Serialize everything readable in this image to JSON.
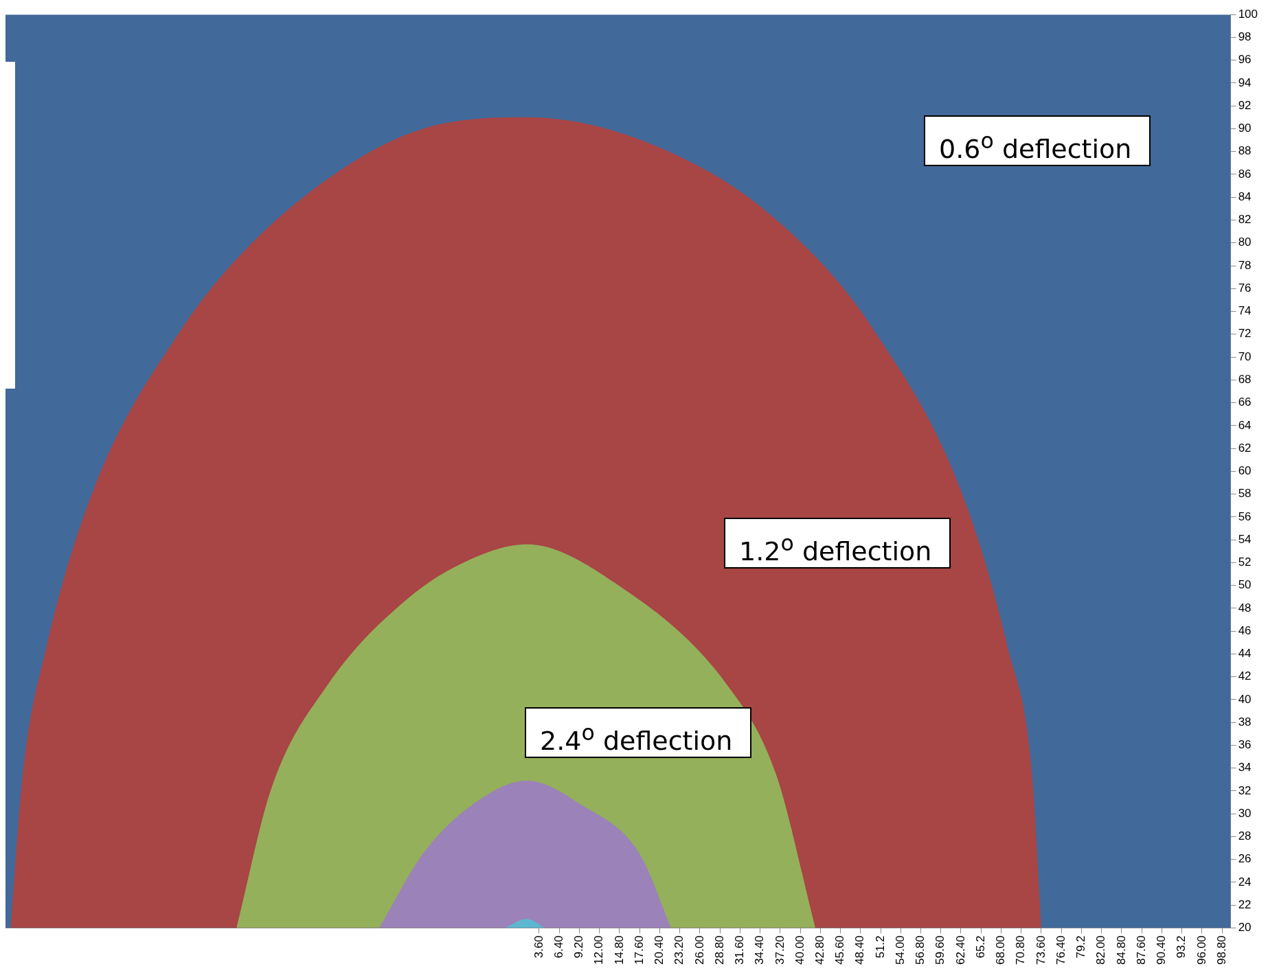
{
  "chart_data": {
    "type": "area",
    "annotations": [
      "0.6$^{o}$ deflection",
      "1.2$^{o}$ deflection",
      "2.4$^{o}$ deflection"
    ],
    "xlim": [
      -70.8,
      100
    ],
    "ylim": [
      20,
      100
    ],
    "xticks": [
      {
        "value": 3.6,
        "label": "3.60"
      },
      {
        "value": 6.4,
        "label": "6.40"
      },
      {
        "value": 9.2,
        "label": "9.20"
      },
      {
        "value": 12,
        "label": "12.00"
      },
      {
        "value": 14.8,
        "label": "14.80"
      },
      {
        "value": 17.6,
        "label": "17.60"
      },
      {
        "value": 20.4,
        "label": "20.40"
      },
      {
        "value": 23.2,
        "label": "23.20"
      },
      {
        "value": 26,
        "label": "26.00"
      },
      {
        "value": 28.8,
        "label": "28.80"
      },
      {
        "value": 31.6,
        "label": "31.60"
      },
      {
        "value": 34.4,
        "label": "34.40"
      },
      {
        "value": 37.2,
        "label": "37.20"
      },
      {
        "value": 40,
        "label": "40.00"
      },
      {
        "value": 42.8,
        "label": "42.80"
      },
      {
        "value": 45.6,
        "label": "45.60"
      },
      {
        "value": 48.4,
        "label": "48.40"
      },
      {
        "value": 51.2,
        "label": "51.2"
      },
      {
        "value": 54,
        "label": "54.00"
      },
      {
        "value": 56.8,
        "label": "56.80"
      },
      {
        "value": 59.6,
        "label": "59.60"
      },
      {
        "value": 62.4,
        "label": "62.40"
      },
      {
        "value": 65.2,
        "label": "65.2"
      },
      {
        "value": 68,
        "label": "68.00"
      },
      {
        "value": 70.8,
        "label": "70.80"
      },
      {
        "value": 73.6,
        "label": "73.60"
      },
      {
        "value": 76.4,
        "label": "76.40"
      },
      {
        "value": 79.2,
        "label": "79.2"
      },
      {
        "value": 82,
        "label": "82.00"
      },
      {
        "value": 84.8,
        "label": "84.80"
      },
      {
        "value": 87.6,
        "label": "87.60"
      },
      {
        "value": 90.4,
        "label": "90.40"
      },
      {
        "value": 93.2,
        "label": "93.2"
      },
      {
        "value": 96,
        "label": "96.00"
      },
      {
        "value": 98.8,
        "label": "98.80"
      }
    ],
    "yticks": [
      20,
      22,
      24,
      26,
      28,
      30,
      32,
      34,
      36,
      38,
      40,
      42,
      44,
      46,
      48,
      50,
      52,
      54,
      56,
      58,
      60,
      62,
      64,
      66,
      68,
      70,
      72,
      74,
      76,
      78,
      80,
      82,
      84,
      86,
      88,
      90,
      92,
      94,
      96,
      98,
      100
    ],
    "grid": false,
    "legend": false,
    "series": [
      {
        "color": "#41699a",
        "x": [
          -70.8,
          100
        ],
        "values": [
          100,
          100
        ]
      },
      {
        "color": "#a84545",
        "x": [
          -70.1,
          -68.4,
          -65.1,
          -58.4,
          -46.1,
          -37.2,
          -23.8,
          -12.6,
          1.9,
          26.5,
          41,
          50,
          62.2,
          68.9,
          72.3,
          73.6
        ],
        "values": [
          20,
          33.5,
          44.6,
          58.6,
          72.6,
          79.5,
          86.5,
          90,
          91,
          86.5,
          79.5,
          72.6,
          58.6,
          44.6,
          33.5,
          20
        ]
      },
      {
        "color": "#94b05a",
        "x": [
          -38.6,
          -33.8,
          -26,
          -14.8,
          -5.9,
          1.9,
          14.2,
          29.9,
          36.6,
          42.1
        ],
        "values": [
          20,
          32.1,
          41.2,
          48.8,
          52.3,
          53.6,
          50.2,
          41.2,
          33.5,
          20
        ]
      },
      {
        "color": "#9b82b8",
        "x": [
          -18.7,
          -12.6,
          -5.9,
          1.9,
          9.7,
          17.6,
          22
        ],
        "values": [
          20,
          26.5,
          30.7,
          32.9,
          30.7,
          26.5,
          20
        ]
      },
      {
        "color": "#5bb8d0",
        "x": [
          -1.2,
          1.9,
          4.4
        ],
        "values": [
          20,
          20.8,
          20
        ]
      }
    ]
  }
}
